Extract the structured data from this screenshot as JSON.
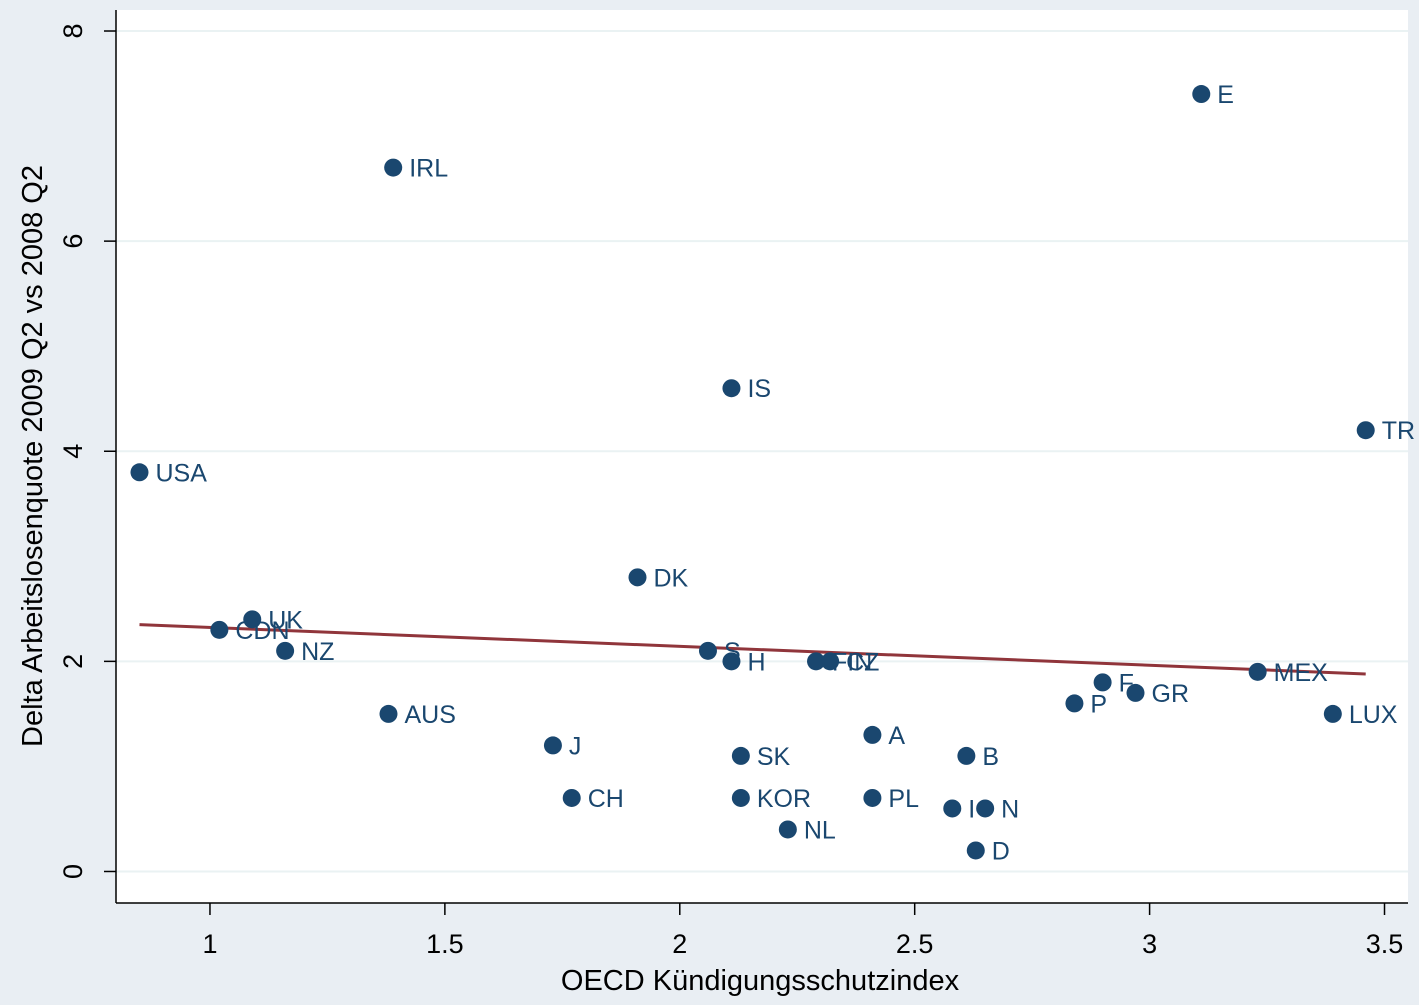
{
  "chart_data": {
    "type": "scatter",
    "title": "",
    "xlabel": "OECD Kündigungsschutzindex",
    "ylabel": "Delta Arbeitslosenquote 2009 Q2 vs 2008 Q2",
    "xlim": [
      0.8,
      3.55
    ],
    "ylim": [
      -0.3,
      8.2
    ],
    "xticks": [
      1,
      1.5,
      2,
      2.5,
      3,
      3.5
    ],
    "xtick_labels": [
      "1",
      "1.5",
      "2",
      "2.5",
      "3",
      "3.5"
    ],
    "yticks": [
      0,
      2,
      4,
      6,
      8
    ],
    "ytick_labels": [
      "0",
      "2",
      "4",
      "6",
      "8"
    ],
    "grid": "horizontal",
    "legend": "none",
    "point_color": "#1a476f",
    "fit_color": "#90353b",
    "points": [
      {
        "label": "USA",
        "x": 0.85,
        "y": 3.8
      },
      {
        "label": "CDN",
        "x": 1.02,
        "y": 2.3
      },
      {
        "label": "UK",
        "x": 1.09,
        "y": 2.4
      },
      {
        "label": "NZ",
        "x": 1.16,
        "y": 2.1
      },
      {
        "label": "AUS",
        "x": 1.38,
        "y": 1.5
      },
      {
        "label": "IRL",
        "x": 1.39,
        "y": 6.7
      },
      {
        "label": "J",
        "x": 1.73,
        "y": 1.2
      },
      {
        "label": "CH",
        "x": 1.77,
        "y": 0.7
      },
      {
        "label": "DK",
        "x": 1.91,
        "y": 2.8
      },
      {
        "label": "S",
        "x": 2.06,
        "y": 2.1
      },
      {
        "label": "H",
        "x": 2.11,
        "y": 2.0
      },
      {
        "label": "IS",
        "x": 2.11,
        "y": 4.6
      },
      {
        "label": "SK",
        "x": 2.13,
        "y": 1.1
      },
      {
        "label": "KOR",
        "x": 2.13,
        "y": 0.7
      },
      {
        "label": "NL",
        "x": 2.23,
        "y": 0.4
      },
      {
        "label": "FIN",
        "x": 2.29,
        "y": 2.0
      },
      {
        "label": "CZ",
        "x": 2.32,
        "y": 2.0
      },
      {
        "label": "A",
        "x": 2.41,
        "y": 1.3
      },
      {
        "label": "PL",
        "x": 2.41,
        "y": 0.7
      },
      {
        "label": "I",
        "x": 2.58,
        "y": 0.6
      },
      {
        "label": "B",
        "x": 2.61,
        "y": 1.1
      },
      {
        "label": "D",
        "x": 2.63,
        "y": 0.2
      },
      {
        "label": "N",
        "x": 2.65,
        "y": 0.6
      },
      {
        "label": "P",
        "x": 2.84,
        "y": 1.6
      },
      {
        "label": "F",
        "x": 2.9,
        "y": 1.8
      },
      {
        "label": "GR",
        "x": 2.97,
        "y": 1.7
      },
      {
        "label": "E",
        "x": 3.11,
        "y": 7.4
      },
      {
        "label": "MEX",
        "x": 3.23,
        "y": 1.9
      },
      {
        "label": "LUX",
        "x": 3.39,
        "y": 1.5
      },
      {
        "label": "TR",
        "x": 3.46,
        "y": 4.2
      }
    ],
    "fit_line": {
      "x": [
        0.85,
        3.46
      ],
      "y": [
        2.35,
        1.88
      ]
    }
  }
}
